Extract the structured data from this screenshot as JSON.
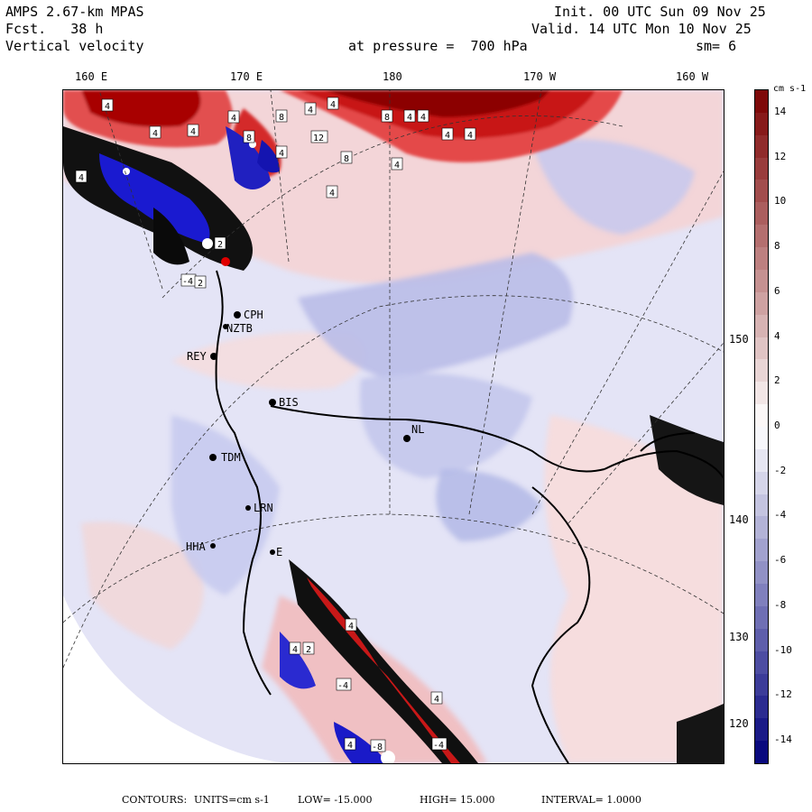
{
  "header": {
    "model": "AMPS 2.67-km MPAS",
    "fcst_label": "Fcst.",
    "fcst_value": "38 h",
    "field": "Vertical velocity",
    "init": "Init. 00 UTC Sun 09 Nov 25",
    "valid": "Valid. 14 UTC Mon 10 Nov 25",
    "pressure_label": "at pressure =",
    "pressure_value": "700 hPa",
    "smoothing": "sm= 6"
  },
  "longitude_labels": [
    "160 E",
    "170 E",
    "180",
    "170 W",
    "160 W"
  ],
  "latitude_labels": [
    "150 W",
    "140 W",
    "130 W",
    "120 W"
  ],
  "stations": [
    {
      "id": "CPH"
    },
    {
      "id": "NZTB"
    },
    {
      "id": "REY"
    },
    {
      "id": "BIS"
    },
    {
      "id": "NL"
    },
    {
      "id": "TDM"
    },
    {
      "id": "LRN"
    },
    {
      "id": "HHA"
    },
    {
      "id": "E"
    }
  ],
  "contour_labels": [
    "4",
    "4",
    "8",
    "4",
    "4",
    "8",
    "4",
    "4",
    "12",
    "4",
    "8",
    "4",
    "4",
    "4",
    "4",
    "8",
    "4",
    "4",
    "4",
    "-4",
    "2",
    "2",
    "4",
    "4",
    "2",
    "-4",
    "4",
    "4",
    "-4",
    "-8"
  ],
  "colorbar": {
    "units": "cm s-1",
    "min": -15,
    "max": 15,
    "tick_labels": [
      "14",
      "12",
      "10",
      "8",
      "6",
      "4",
      "2",
      "0",
      "-2",
      "-4",
      "-6",
      "-8",
      "-10",
      "-12",
      "-14"
    ],
    "colors": {
      "max_red": "#7a0000",
      "zero": "#ffffff",
      "max_blue": "#00007a"
    }
  },
  "footer": {
    "contours_label": "CONTOURS:",
    "units": "UNITS=cm s-1",
    "low": "LOW= -15.000",
    "high": "HIGH= 15.000",
    "interval": "INTERVAL= 1.0000"
  }
}
